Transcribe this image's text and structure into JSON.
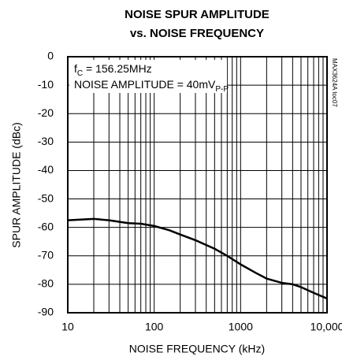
{
  "chart_data": {
    "type": "line",
    "title": [
      "NOISE SPUR AMPLITUDE",
      "vs. NOISE FREQUENCY"
    ],
    "xlabel": "NOISE FREQUENCY (kHz)",
    "ylabel": "SPUR AMPLITUDE (dBc)",
    "annotations": [
      [
        "f",
        "C",
        " = 156.25MHz"
      ],
      [
        "NOISE AMPLITUDE = 40mV",
        "P-P"
      ]
    ],
    "side_note": "MAX3624A toc07",
    "x": [
      10,
      20,
      30,
      50,
      70,
      100,
      150,
      200,
      300,
      500,
      700,
      1000,
      1500,
      2000,
      3000,
      4000,
      5000,
      7000,
      10000
    ],
    "series": [
      {
        "name": "SPUR AMPLITUDE",
        "color": "#000000",
        "values": [
          -57.5,
          -57,
          -57.5,
          -58.5,
          -58.7,
          -59.5,
          -61,
          -62.5,
          -64.5,
          -67.5,
          -70,
          -73,
          -76,
          -78,
          -79.5,
          -80,
          -81,
          -83,
          -85
        ]
      }
    ],
    "xlim": [
      10,
      10000
    ],
    "xscale": "log",
    "xticks": [
      10,
      100,
      1000,
      {
        "value": 10000,
        "label": "10,000"
      }
    ],
    "xgrid_minor": [
      20,
      30,
      40,
      50,
      60,
      70,
      80,
      90,
      200,
      300,
      400,
      500,
      600,
      700,
      800,
      900,
      2000,
      3000,
      4000,
      5000,
      6000,
      7000,
      8000,
      9000
    ],
    "ylim": [
      -90,
      0
    ],
    "yticks": [
      0,
      -10,
      -20,
      -30,
      -40,
      -50,
      -60,
      -70,
      -80,
      -90
    ],
    "grid": true
  }
}
